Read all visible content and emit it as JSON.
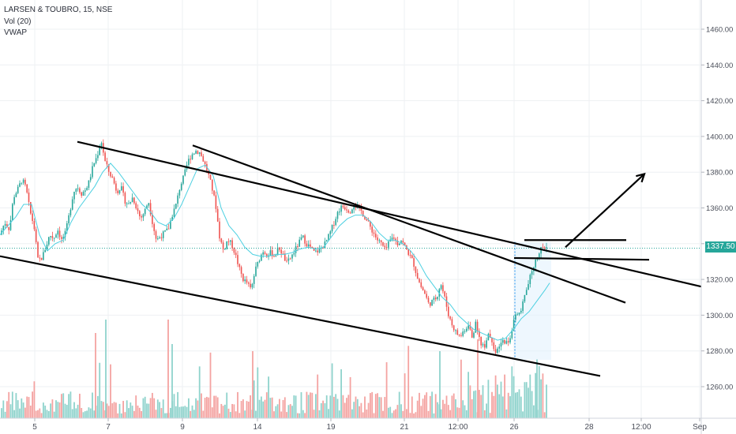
{
  "header": {
    "title": "LARSEN & TOUBRO, 15, NSE",
    "vol": "Vol (20)",
    "vwap": "VWAP"
  },
  "last_price_label": "1337.50",
  "colors": {
    "up": "#26a69a",
    "down": "#ef5350",
    "vol_up": "#8fd3cc",
    "vol_down": "#f4a3a1",
    "vwap": "#4dd0e1",
    "grid": "#eef0f3",
    "trendline": "#000000"
  },
  "chart_data": {
    "type": "candlestick",
    "y_axis": {
      "ticks": [
        "1460.00",
        "1440.00",
        "1420.00",
        "1400.00",
        "1380.00",
        "1360.00",
        "1340.00",
        "1320.00",
        "1300.00",
        "1280.00",
        "1260.00"
      ],
      "ylim": [
        1245,
        1470
      ]
    },
    "x_axis": {
      "ticks": [
        "5",
        "7",
        "9",
        "14",
        "19",
        "21",
        "12:00",
        "26",
        "28",
        "12:00",
        "Sep"
      ]
    },
    "last_price": 1337.5,
    "price_path": [
      [
        0,
        1345
      ],
      [
        6,
        1352
      ],
      [
        12,
        1348
      ],
      [
        17,
        1366
      ],
      [
        22,
        1370
      ],
      [
        28,
        1376
      ],
      [
        33,
        1371
      ],
      [
        38,
        1358
      ],
      [
        43,
        1350
      ],
      [
        48,
        1331
      ],
      [
        53,
        1332
      ],
      [
        58,
        1338
      ],
      [
        63,
        1345
      ],
      [
        68,
        1343
      ],
      [
        73,
        1348
      ],
      [
        78,
        1342
      ],
      [
        83,
        1346
      ],
      [
        88,
        1357
      ],
      [
        93,
        1369
      ],
      [
        98,
        1372
      ],
      [
        103,
        1368
      ],
      [
        108,
        1370
      ],
      [
        113,
        1375
      ],
      [
        118,
        1384
      ],
      [
        123,
        1389
      ],
      [
        128,
        1398
      ],
      [
        133,
        1386
      ],
      [
        138,
        1380
      ],
      [
        143,
        1376
      ],
      [
        148,
        1369
      ],
      [
        153,
        1372
      ],
      [
        158,
        1364
      ],
      [
        163,
        1362
      ],
      [
        168,
        1366
      ],
      [
        173,
        1360
      ],
      [
        178,
        1354
      ],
      [
        183,
        1358
      ],
      [
        188,
        1364
      ],
      [
        193,
        1352
      ],
      [
        198,
        1342
      ],
      [
        203,
        1344
      ],
      [
        208,
        1346
      ],
      [
        213,
        1348
      ],
      [
        218,
        1356
      ],
      [
        223,
        1362
      ],
      [
        228,
        1372
      ],
      [
        233,
        1378
      ],
      [
        238,
        1386
      ],
      [
        243,
        1390
      ],
      [
        248,
        1392
      ],
      [
        253,
        1391
      ],
      [
        258,
        1386
      ],
      [
        263,
        1380
      ],
      [
        268,
        1372
      ],
      [
        273,
        1362
      ],
      [
        278,
        1344
      ],
      [
        283,
        1336
      ],
      [
        288,
        1342
      ],
      [
        293,
        1340
      ],
      [
        298,
        1334
      ],
      [
        303,
        1326
      ],
      [
        308,
        1320
      ],
      [
        313,
        1318
      ],
      [
        318,
        1314
      ],
      [
        323,
        1325
      ],
      [
        328,
        1331
      ],
      [
        333,
        1336
      ],
      [
        338,
        1334
      ],
      [
        343,
        1335
      ],
      [
        348,
        1333
      ],
      [
        353,
        1338
      ],
      [
        358,
        1334
      ],
      [
        363,
        1329
      ],
      [
        368,
        1332
      ],
      [
        373,
        1336
      ],
      [
        378,
        1340
      ],
      [
        383,
        1344
      ],
      [
        388,
        1340
      ],
      [
        393,
        1338
      ],
      [
        398,
        1335
      ],
      [
        403,
        1336
      ],
      [
        408,
        1338
      ],
      [
        413,
        1341
      ],
      [
        418,
        1346
      ],
      [
        423,
        1352
      ],
      [
        428,
        1358
      ],
      [
        433,
        1361
      ],
      [
        438,
        1360
      ],
      [
        443,
        1358
      ],
      [
        448,
        1362
      ],
      [
        453,
        1360
      ],
      [
        458,
        1358
      ],
      [
        463,
        1354
      ],
      [
        468,
        1350
      ],
      [
        473,
        1346
      ],
      [
        478,
        1342
      ],
      [
        483,
        1340
      ],
      [
        488,
        1336
      ],
      [
        493,
        1341
      ],
      [
        498,
        1344
      ],
      [
        503,
        1340
      ],
      [
        508,
        1342
      ],
      [
        513,
        1338
      ],
      [
        518,
        1334
      ],
      [
        523,
        1330
      ],
      [
        528,
        1322
      ],
      [
        533,
        1316
      ],
      [
        538,
        1312
      ],
      [
        543,
        1306
      ],
      [
        548,
        1308
      ],
      [
        553,
        1310
      ],
      [
        558,
        1318
      ],
      [
        563,
        1310
      ],
      [
        568,
        1300
      ],
      [
        573,
        1294
      ],
      [
        578,
        1290
      ],
      [
        583,
        1288
      ],
      [
        588,
        1292
      ],
      [
        593,
        1294
      ],
      [
        598,
        1288
      ],
      [
        603,
        1296
      ],
      [
        608,
        1285
      ],
      [
        613,
        1282
      ],
      [
        618,
        1290
      ],
      [
        623,
        1286
      ],
      [
        628,
        1278
      ],
      [
        633,
        1283
      ],
      [
        638,
        1286
      ],
      [
        643,
        1284
      ],
      [
        648,
        1290
      ],
      [
        653,
        1302
      ],
      [
        658,
        1300
      ],
      [
        663,
        1308
      ],
      [
        668,
        1316
      ],
      [
        673,
        1324
      ],
      [
        678,
        1330
      ],
      [
        683,
        1336
      ],
      [
        688,
        1338
      ],
      [
        693,
        1337.5
      ]
    ],
    "vwap_path": [
      [
        0,
        1345
      ],
      [
        10,
        1350
      ],
      [
        20,
        1355
      ],
      [
        30,
        1362
      ],
      [
        40,
        1362
      ],
      [
        50,
        1345
      ],
      [
        60,
        1336
      ],
      [
        70,
        1340
      ],
      [
        80,
        1342
      ],
      [
        90,
        1352
      ],
      [
        100,
        1360
      ],
      [
        110,
        1366
      ],
      [
        120,
        1372
      ],
      [
        130,
        1380
      ],
      [
        140,
        1385
      ],
      [
        150,
        1380
      ],
      [
        160,
        1374
      ],
      [
        170,
        1368
      ],
      [
        180,
        1362
      ],
      [
        190,
        1358
      ],
      [
        200,
        1352
      ],
      [
        210,
        1350
      ],
      [
        220,
        1354
      ],
      [
        230,
        1362
      ],
      [
        240,
        1372
      ],
      [
        250,
        1382
      ],
      [
        260,
        1384
      ],
      [
        270,
        1378
      ],
      [
        280,
        1360
      ],
      [
        290,
        1350
      ],
      [
        300,
        1345
      ],
      [
        310,
        1338
      ],
      [
        320,
        1334
      ],
      [
        330,
        1333
      ],
      [
        340,
        1333
      ],
      [
        350,
        1334
      ],
      [
        360,
        1334
      ],
      [
        370,
        1335
      ],
      [
        380,
        1337
      ],
      [
        390,
        1338
      ],
      [
        400,
        1337
      ],
      [
        410,
        1338
      ],
      [
        420,
        1344
      ],
      [
        430,
        1350
      ],
      [
        440,
        1354
      ],
      [
        450,
        1356
      ],
      [
        460,
        1356
      ],
      [
        470,
        1352
      ],
      [
        480,
        1346
      ],
      [
        490,
        1342
      ],
      [
        500,
        1342
      ],
      [
        510,
        1340
      ],
      [
        520,
        1336
      ],
      [
        530,
        1330
      ],
      [
        540,
        1322
      ],
      [
        550,
        1316
      ],
      [
        560,
        1310
      ],
      [
        570,
        1306
      ],
      [
        580,
        1300
      ],
      [
        590,
        1296
      ],
      [
        600,
        1292
      ],
      [
        610,
        1290
      ],
      [
        620,
        1288
      ],
      [
        630,
        1286
      ],
      [
        640,
        1287
      ],
      [
        650,
        1292
      ],
      [
        660,
        1298
      ],
      [
        670,
        1302
      ],
      [
        680,
        1308
      ],
      [
        690,
        1314
      ],
      [
        696,
        1318
      ]
    ],
    "trendlines": [
      {
        "from": [
          0,
          1333
        ],
        "to": [
          760,
          1266
        ]
      },
      {
        "from": [
          98,
          1397
        ],
        "to": [
          888,
          1316
        ]
      },
      {
        "from": [
          244,
          1395
        ],
        "to": [
          792,
          1307
        ]
      },
      {
        "from": [
          651,
          1332
        ],
        "to": [
          822,
          1331
        ]
      },
      {
        "from": [
          664,
          1342
        ],
        "to": [
          793,
          1342
        ]
      }
    ],
    "arrow": {
      "from": [
        716,
        1338
      ],
      "to": [
        816,
        1379
      ]
    },
    "annotations": []
  }
}
